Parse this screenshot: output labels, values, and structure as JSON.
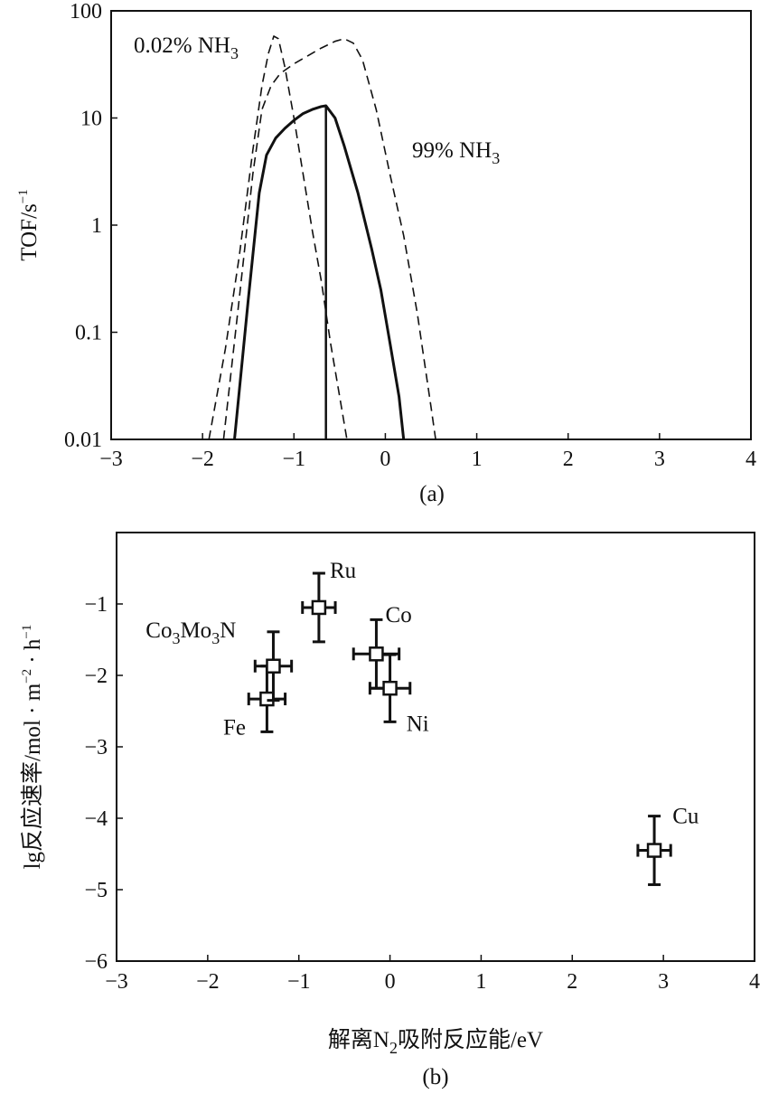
{
  "chart_data": [
    {
      "type": "line",
      "caption": "(a)",
      "ylabel": "TOF/s",
      "ylabel_sup": "−1",
      "yscale": "log",
      "xlim": [
        -3,
        4
      ],
      "ylim": [
        0.01,
        100
      ],
      "x_ticks": [
        "−3",
        "−2",
        "−1",
        "0",
        "1",
        "2",
        "3",
        "4"
      ],
      "y_ticks": [
        "0.01",
        "0.1",
        "1",
        "10",
        "100"
      ],
      "grid": false,
      "annotations": [
        {
          "id": "s0",
          "base": "0.02% NH",
          "sub": "3"
        },
        {
          "id": "s2",
          "base": "99% NH",
          "sub": "3"
        }
      ],
      "series": [
        {
          "style": "dashed",
          "x": [
            -1.93,
            -1.75,
            -1.6,
            -1.45,
            -1.35,
            -1.28,
            -1.22,
            -1.17,
            -1.1,
            -1.0,
            -0.9,
            -0.8,
            -0.7,
            -0.6,
            -0.5,
            -0.42
          ],
          "y": [
            0.01,
            0.07,
            0.5,
            5,
            20,
            40,
            58,
            55,
            30,
            10,
            3,
            0.9,
            0.3,
            0.08,
            0.025,
            0.01
          ]
        },
        {
          "style": "solid",
          "x": [
            -1.65,
            -1.5,
            -1.38,
            -1.3,
            -1.2,
            -1.1,
            -1.0,
            -0.9,
            -0.8,
            -0.7,
            -0.65,
            -0.55,
            -0.45,
            -0.3,
            -0.15,
            -0.05,
            0.05,
            0.15,
            0.2
          ],
          "y": [
            0.01,
            0.2,
            2,
            4.5,
            6.5,
            8,
            9.5,
            11,
            12,
            12.8,
            13,
            10,
            5.5,
            2,
            0.6,
            0.25,
            0.08,
            0.025,
            0.01
          ],
          "marker_x": -0.65
        },
        {
          "style": "dashed",
          "x": [
            -1.77,
            -1.6,
            -1.45,
            -1.35,
            -1.25,
            -1.15,
            -1.0,
            -0.85,
            -0.7,
            -0.55,
            -0.45,
            -0.35,
            -0.25,
            -0.1,
            0.05,
            0.2,
            0.35,
            0.5,
            0.55
          ],
          "y": [
            0.01,
            0.2,
            3,
            12,
            20,
            26,
            32,
            38,
            45,
            52,
            55,
            50,
            35,
            12,
            3,
            0.8,
            0.15,
            0.02,
            0.01
          ]
        }
      ]
    },
    {
      "type": "scatter",
      "caption": "(b)",
      "ylabel": "lg反应速率/mol · m",
      "ylabel_sup1": "−2",
      "ylabel_mid": " · h",
      "ylabel_sup2": "−1",
      "xlabel_pre": "解离N",
      "xlabel_sub": "2",
      "xlabel_post": "吸附反应能/eV",
      "xlim": [
        -3,
        4
      ],
      "ylim": [
        -6,
        0
      ],
      "x_ticks": [
        "−3",
        "−2",
        "−1",
        "0",
        "1",
        "2",
        "3",
        "4"
      ],
      "y_ticks": [
        "−1",
        "−2",
        "−3",
        "−4",
        "−5",
        "−6"
      ],
      "grid": false,
      "points": [
        {
          "label": "Ru",
          "x": -0.78,
          "y": -1.05,
          "xerr": 0.18,
          "yerr": 0.48,
          "label_dx": 0.12,
          "label_dy": 0.42
        },
        {
          "label": "Co",
          "x": -0.15,
          "y": -1.7,
          "xerr": 0.25,
          "yerr": 0.48,
          "label_dx": 0.1,
          "label_dy": 0.45
        },
        {
          "label": "Ni",
          "x": 0.0,
          "y": -2.18,
          "xerr": 0.22,
          "yerr": 0.47,
          "label_dx": 0.18,
          "label_dy": -0.6
        },
        {
          "label": "Fe",
          "x": -1.35,
          "y": -2.33,
          "xerr": 0.2,
          "yerr": 0.46,
          "label_dx": -0.48,
          "label_dy": -0.5
        },
        {
          "label": "Co3Mo3N",
          "label_parts": [
            "Co",
            "3",
            "Mo",
            "3",
            "N"
          ],
          "x": -1.28,
          "y": -1.87,
          "xerr": 0.2,
          "yerr": 0.48,
          "label_dx": -1.4,
          "label_dy": 0.4
        },
        {
          "label": "Cu",
          "x": 2.9,
          "y": -4.45,
          "xerr": 0.18,
          "yerr": 0.48,
          "label_dx": 0.2,
          "label_dy": 0.38
        }
      ]
    }
  ]
}
